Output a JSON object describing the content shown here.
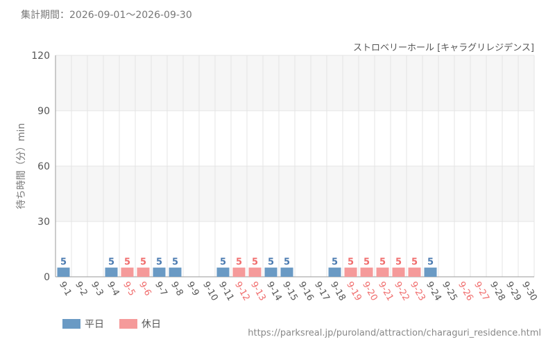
{
  "header": {
    "period_label": "集計期間：2026-09-01〜2026-09-30"
  },
  "footer": {
    "legend": [
      {
        "label": "平日",
        "color": "#6a9ac4"
      },
      {
        "label": "休日",
        "color": "#f59a9a"
      }
    ],
    "source_url": "https://parksreal.jp/puroland/attraction/charaguri_residence.html"
  },
  "chart_data": {
    "type": "bar",
    "title": "ストロベリーホール [キャラグリレジデンス]",
    "ylabel": "待ち時間（分）min",
    "xlabel": "",
    "ylim": [
      0,
      120
    ],
    "yticks": [
      0,
      30,
      60,
      90,
      120
    ],
    "grid": true,
    "legend_placement": "bottom-left",
    "colors": {
      "weekday": "#6a9ac4",
      "holiday": "#f59a9a",
      "weekday_text": "#4a7ab0",
      "holiday_text": "#f06c6c"
    },
    "categories": [
      "9-1",
      "9-2",
      "9-3",
      "9-4",
      "9-5",
      "9-6",
      "9-7",
      "9-8",
      "9-9",
      "9-10",
      "9-11",
      "9-12",
      "9-13",
      "9-14",
      "9-15",
      "9-16",
      "9-17",
      "9-18",
      "9-19",
      "9-20",
      "9-21",
      "9-22",
      "9-23",
      "9-24",
      "9-25",
      "9-26",
      "9-27",
      "9-28",
      "9-29",
      "9-30"
    ],
    "holiday": [
      false,
      false,
      false,
      false,
      true,
      true,
      false,
      false,
      false,
      false,
      false,
      true,
      true,
      false,
      false,
      false,
      false,
      false,
      true,
      true,
      true,
      true,
      true,
      false,
      false,
      true,
      true,
      false,
      false,
      false
    ],
    "values": [
      5,
      null,
      null,
      5,
      5,
      5,
      5,
      5,
      null,
      null,
      5,
      5,
      5,
      5,
      5,
      null,
      null,
      5,
      5,
      5,
      5,
      5,
      5,
      5,
      null,
      null,
      null,
      null,
      null,
      null
    ]
  }
}
